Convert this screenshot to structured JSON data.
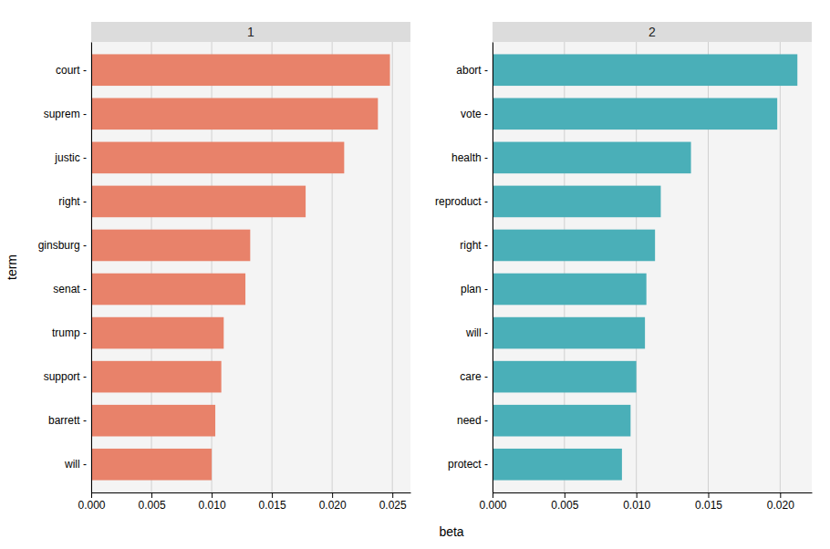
{
  "chart_data": [
    {
      "type": "bar",
      "orientation": "horizontal",
      "title": "1",
      "categories": [
        "court -",
        "suprem -",
        "justic -",
        "right -",
        "ginsburg -",
        "senat -",
        "trump -",
        "support -",
        "barrett -",
        "will -"
      ],
      "values": [
        0.0248,
        0.0238,
        0.021,
        0.0178,
        0.0132,
        0.0128,
        0.011,
        0.0108,
        0.0103,
        0.01
      ],
      "color": "#E8826A",
      "xlabel": "beta",
      "ylabel": "term",
      "xlim": [
        0,
        0.0265
      ],
      "xticks": [
        {
          "value": 0,
          "label": "0.000"
        },
        0.005,
        {
          "value": 0.01,
          "label": "0.010"
        },
        0.015,
        {
          "value": 0.02,
          "label": "0.020"
        },
        0.025
      ],
      "grid": true
    },
    {
      "type": "bar",
      "orientation": "horizontal",
      "title": "2",
      "categories": [
        "abort -",
        "vote -",
        "health -",
        "reproduct -",
        "right -",
        "plan -",
        "will -",
        "care -",
        "need -",
        "protect -"
      ],
      "values": [
        0.0212,
        0.0198,
        0.0138,
        0.0117,
        0.0113,
        0.0107,
        0.0106,
        0.01,
        0.0096,
        0.009
      ],
      "color": "#4AAFB8",
      "xlim": [
        0,
        0.0222
      ],
      "xticks": [
        {
          "value": 0,
          "label": "0.000"
        },
        0.005,
        {
          "value": 0.01,
          "label": "0.010"
        },
        0.015,
        {
          "value": 0.02,
          "label": "0.020"
        }
      ],
      "grid": true
    }
  ]
}
